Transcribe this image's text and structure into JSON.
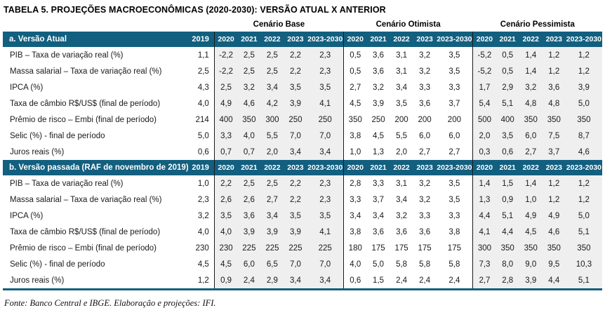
{
  "title": "TABELA 5. PROJEÇÕES MACROECONÔMICAS (2020-2030): VERSÃO ATUAL X ANTERIOR",
  "footer": "Fonte: Banco Central e IBGE. Elaboração e projeções: IFI.",
  "colors": {
    "header_bg": "#135F7F",
    "block_bg": "#EFEFEF",
    "divider": "#1a1a1a"
  },
  "scenarios": {
    "base": "Cenário Base",
    "otimista": "Cenário Otimista",
    "pessimista": "Cenário Pessimista"
  },
  "first_year_col": "2019",
  "scenario_years": [
    "2020",
    "2021",
    "2022",
    "2023",
    "2023-2030"
  ],
  "sections": [
    {
      "title": "a. Versão Atual",
      "rows": [
        {
          "label": "PIB – Taxa de variação real (%)",
          "y2019": "1,1",
          "base": [
            "-2,2",
            "2,5",
            "2,5",
            "2,2",
            "2,3"
          ],
          "otimista": [
            "0,5",
            "3,6",
            "3,1",
            "3,2",
            "3,5"
          ],
          "pessimista": [
            "-5,2",
            "0,5",
            "1,4",
            "1,2",
            "1,2"
          ]
        },
        {
          "label": "Massa salarial – Taxa de variação real (%)",
          "y2019": "2,5",
          "base": [
            "-2,2",
            "2,5",
            "2,5",
            "2,2",
            "2,3"
          ],
          "otimista": [
            "0,5",
            "3,6",
            "3,1",
            "3,2",
            "3,5"
          ],
          "pessimista": [
            "-5,2",
            "0,5",
            "1,4",
            "1,2",
            "1,2"
          ]
        },
        {
          "label": "IPCA (%)",
          "y2019": "4,3",
          "base": [
            "2,5",
            "3,2",
            "3,4",
            "3,5",
            "3,5"
          ],
          "otimista": [
            "2,7",
            "3,2",
            "3,4",
            "3,3",
            "3,3"
          ],
          "pessimista": [
            "1,7",
            "2,9",
            "3,2",
            "3,6",
            "3,9"
          ]
        },
        {
          "label": "Taxa de câmbio R$/US$ (final de período)",
          "y2019": "4,0",
          "base": [
            "4,9",
            "4,6",
            "4,2",
            "3,9",
            "4,1"
          ],
          "otimista": [
            "4,5",
            "3,9",
            "3,5",
            "3,6",
            "3,7"
          ],
          "pessimista": [
            "5,4",
            "5,1",
            "4,8",
            "4,8",
            "5,0"
          ]
        },
        {
          "label": "Prêmio de risco – Embi (final de período)",
          "y2019": "214",
          "base": [
            "400",
            "350",
            "300",
            "250",
            "250"
          ],
          "otimista": [
            "350",
            "250",
            "200",
            "200",
            "200"
          ],
          "pessimista": [
            "500",
            "400",
            "350",
            "350",
            "350"
          ]
        },
        {
          "label": "Selic (%) - final de período",
          "y2019": "5,0",
          "base": [
            "3,3",
            "4,0",
            "5,5",
            "7,0",
            "7,0"
          ],
          "otimista": [
            "3,8",
            "4,5",
            "5,5",
            "6,0",
            "6,0"
          ],
          "pessimista": [
            "2,0",
            "3,5",
            "6,0",
            "7,5",
            "8,7"
          ]
        },
        {
          "label": "Juros reais (%)",
          "y2019": "0,6",
          "base": [
            "0,7",
            "0,7",
            "2,0",
            "3,4",
            "3,4"
          ],
          "otimista": [
            "1,0",
            "1,3",
            "2,0",
            "2,7",
            "2,7"
          ],
          "pessimista": [
            "0,3",
            "0,6",
            "2,7",
            "3,7",
            "4,6"
          ]
        }
      ]
    },
    {
      "title": "b. Versão passada (RAF de novembro de 2019)",
      "rows": [
        {
          "label": "PIB – Taxa de variação real (%)",
          "y2019": "1,0",
          "base": [
            "2,2",
            "2,5",
            "2,5",
            "2,2",
            "2,3"
          ],
          "otimista": [
            "2,8",
            "3,3",
            "3,1",
            "3,2",
            "3,5"
          ],
          "pessimista": [
            "1,4",
            "1,5",
            "1,4",
            "1,2",
            "1,2"
          ]
        },
        {
          "label": "Massa salarial – Taxa de variação real (%)",
          "y2019": "2,3",
          "base": [
            "2,6",
            "2,6",
            "2,7",
            "2,2",
            "2,3"
          ],
          "otimista": [
            "3,3",
            "3,7",
            "3,4",
            "3,2",
            "3,5"
          ],
          "pessimista": [
            "1,3",
            "0,9",
            "1,0",
            "1,2",
            "1,2"
          ]
        },
        {
          "label": "IPCA (%)",
          "y2019": "3,2",
          "base": [
            "3,5",
            "3,6",
            "3,4",
            "3,5",
            "3,5"
          ],
          "otimista": [
            "3,4",
            "3,4",
            "3,2",
            "3,3",
            "3,3"
          ],
          "pessimista": [
            "4,4",
            "5,1",
            "4,9",
            "4,9",
            "5,0"
          ]
        },
        {
          "label": "Taxa de câmbio R$/US$ (final de período)",
          "y2019": "4,0",
          "base": [
            "4,0",
            "3,9",
            "3,9",
            "3,9",
            "4,1"
          ],
          "otimista": [
            "3,8",
            "3,6",
            "3,6",
            "3,6",
            "3,8"
          ],
          "pessimista": [
            "4,1",
            "4,4",
            "4,5",
            "4,6",
            "5,1"
          ]
        },
        {
          "label": "Prêmio de risco – Embi (final de período)",
          "y2019": "230",
          "base": [
            "230",
            "225",
            "225",
            "225",
            "225"
          ],
          "otimista": [
            "180",
            "175",
            "175",
            "175",
            "175"
          ],
          "pessimista": [
            "300",
            "350",
            "350",
            "350",
            "350"
          ]
        },
        {
          "label": "Selic (%) - final de período",
          "y2019": "4,5",
          "base": [
            "4,5",
            "6,0",
            "6,5",
            "7,0",
            "7,0"
          ],
          "otimista": [
            "4,0",
            "5,0",
            "5,8",
            "5,8",
            "5,8"
          ],
          "pessimista": [
            "7,3",
            "8,0",
            "9,0",
            "9,5",
            "10,3"
          ]
        },
        {
          "label": "Juros reais (%)",
          "y2019": "1,2",
          "base": [
            "0,9",
            "2,4",
            "2,9",
            "3,4",
            "3,4"
          ],
          "otimista": [
            "0,6",
            "1,5",
            "2,4",
            "2,4",
            "2,4"
          ],
          "pessimista": [
            "2,7",
            "2,8",
            "3,9",
            "4,4",
            "5,1"
          ]
        }
      ]
    }
  ]
}
